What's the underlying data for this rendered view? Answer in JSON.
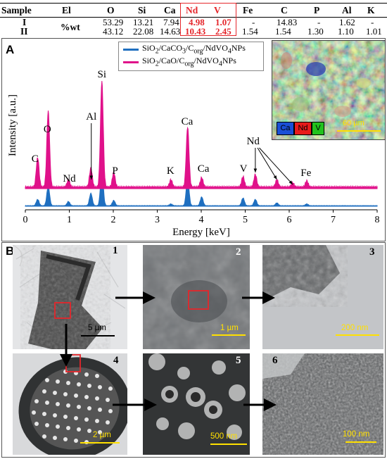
{
  "table": {
    "headers": [
      "Sample",
      "El",
      "O",
      "Si",
      "Ca",
      "Nd",
      "V",
      "Fe",
      "C",
      "P",
      "Al",
      "K"
    ],
    "unit": "%wt",
    "rows": [
      {
        "sample": "I",
        "values": [
          "53.29",
          "13.21",
          "7.94",
          "4.98",
          "1.07",
          "-",
          "14.83",
          "-",
          "1.62",
          "-"
        ]
      },
      {
        "sample": "II",
        "values": [
          "43.12",
          "22.08",
          "14.63",
          "10.43",
          "2.45",
          "1.54",
          "1.54",
          "1.30",
          "1.10",
          "1.01"
        ]
      }
    ]
  },
  "panel_a": {
    "letter": "A",
    "legend": [
      {
        "html": "SiO<sub>2</sub>/CaCO<sub>3</sub>/C<sub>org</sub>/NdVO<sub>4</sub>NPs",
        "color": "#1f6fc0"
      },
      {
        "html": "SiO<sub>2</sub>/CaO/C<sub>org</sub>/NdVO<sub>4</sub>NPs",
        "color": "#e0118a"
      }
    ],
    "map_legend": [
      "Ca",
      "Nd",
      "V"
    ],
    "map_legend_colors": [
      "#1a4fd6",
      "#e81b1b",
      "#21c21d"
    ],
    "map_scale": "60 µm"
  },
  "chart_data": {
    "type": "line",
    "xlabel": "Energy [keV]",
    "ylabel": "Intensity [a.u.]",
    "xlim": [
      0,
      8
    ],
    "x_ticks": [
      "0",
      "1",
      "2",
      "3",
      "4",
      "5",
      "6",
      "7",
      "8"
    ],
    "peaks_keV": {
      "C": 0.28,
      "O": 0.52,
      "Nd": 0.98,
      "Al": 1.49,
      "Si": 1.74,
      "P": 2.01,
      "K": 3.31,
      "Ca": 3.69,
      "Ca_b": 4.01,
      "V": 4.95,
      "Nd_1": 5.23,
      "Nd_2": 5.72,
      "Nd_3": 6.08,
      "Fe": 6.4
    },
    "series": [
      {
        "name": "SiO2/CaCO3/Corg/NdVO4NPs",
        "color": "#1f6fc0",
        "peaks": [
          [
            0.28,
            0.18
          ],
          [
            0.52,
            0.55
          ],
          [
            0.98,
            0.12
          ],
          [
            1.49,
            0.35
          ],
          [
            1.74,
            1.0
          ],
          [
            2.01,
            0.15
          ],
          [
            3.31,
            0.05
          ],
          [
            3.69,
            0.8
          ],
          [
            4.01,
            0.25
          ],
          [
            4.95,
            0.22
          ],
          [
            5.23,
            0.18
          ],
          [
            5.72,
            0.08
          ],
          [
            6.4,
            0.05
          ]
        ]
      },
      {
        "name": "SiO2/CaO/Corg/NdVO4NPs",
        "color": "#e0118a",
        "peaks": [
          [
            0.28,
            0.28
          ],
          [
            0.52,
            0.72
          ],
          [
            0.98,
            0.07
          ],
          [
            1.49,
            0.18
          ],
          [
            1.74,
            1.0
          ],
          [
            2.01,
            0.14
          ],
          [
            3.31,
            0.07
          ],
          [
            3.69,
            0.57
          ],
          [
            4.01,
            0.09
          ],
          [
            4.95,
            0.1
          ],
          [
            5.23,
            0.12
          ],
          [
            5.72,
            0.07
          ],
          [
            6.08,
            0.04
          ],
          [
            6.4,
            0.06
          ]
        ]
      }
    ],
    "annotations": [
      "C",
      "O",
      "Nd",
      "Al",
      "Si",
      "P",
      "K",
      "Ca",
      "Ca",
      "V",
      "Nd",
      "Fe"
    ]
  },
  "panel_b": {
    "letter": "B",
    "images": [
      {
        "num": "1",
        "scale": "5 µm"
      },
      {
        "num": "2",
        "scale": "1 µm"
      },
      {
        "num": "3",
        "scale": "200 nm"
      },
      {
        "num": "4",
        "scale": "2 µm"
      },
      {
        "num": "5",
        "scale": "500 nm"
      },
      {
        "num": "6",
        "scale": "100 nm"
      }
    ]
  }
}
